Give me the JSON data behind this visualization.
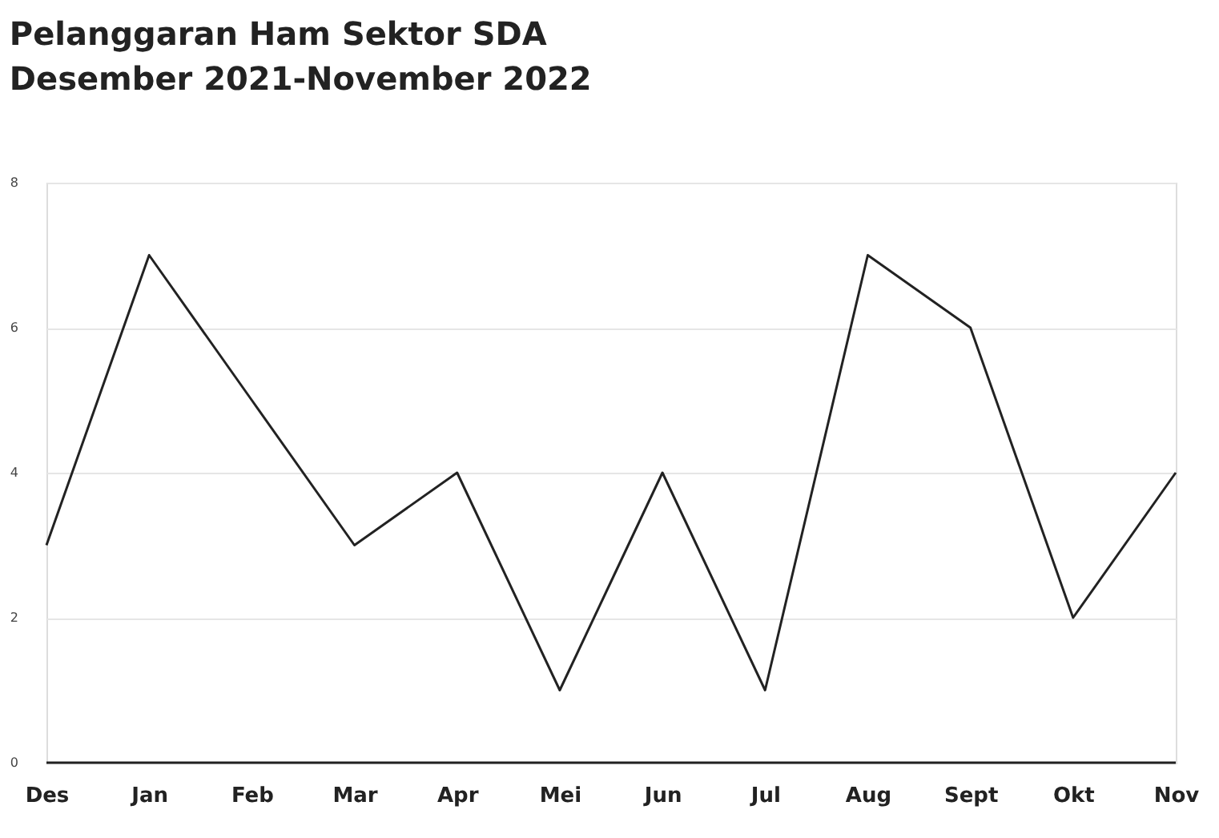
{
  "chart_data": {
    "type": "line",
    "title": "Pelanggaran Ham Sektor SDA",
    "subtitle": "Desember 2021-November 2022",
    "categories": [
      "Des",
      "Jan",
      "Feb",
      "Mar",
      "Apr",
      "Mei",
      "Jun",
      "Jul",
      "Aug",
      "Sept",
      "Okt",
      "Nov"
    ],
    "series": [
      {
        "color": "#222222",
        "values": [
          3,
          7,
          5,
          3,
          4,
          1,
          4,
          1,
          7,
          6,
          2,
          4
        ]
      }
    ],
    "ylim": [
      0,
      8
    ],
    "yticks": [
      0,
      2,
      4,
      6,
      8
    ],
    "grid": "y",
    "marker": "none",
    "line_style": "solid"
  }
}
